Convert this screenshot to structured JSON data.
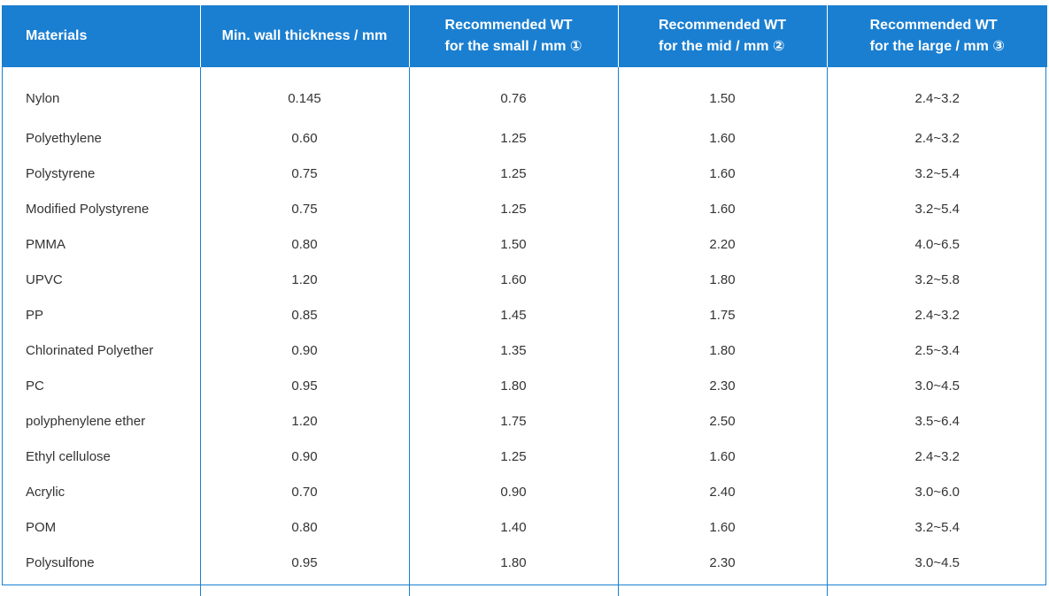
{
  "table": {
    "headers": [
      [
        "Materials"
      ],
      [
        "Min. wall thickness / mm"
      ],
      [
        "Recommended WT",
        "for the small / mm ①"
      ],
      [
        "Recommended WT",
        "for the mid / mm ②"
      ],
      [
        "Recommended WT",
        "for the large / mm ③"
      ]
    ],
    "rows": [
      [
        "Nylon",
        "0.145",
        "0.76",
        "1.50",
        "2.4~3.2"
      ],
      [
        "Polyethylene",
        "0.60",
        "1.25",
        "1.60",
        "2.4~3.2"
      ],
      [
        "Polystyrene",
        "0.75",
        "1.25",
        "1.60",
        "3.2~5.4"
      ],
      [
        "Modified Polystyrene",
        "0.75",
        "1.25",
        "1.60",
        "3.2~5.4"
      ],
      [
        "PMMA",
        "0.80",
        "1.50",
        "2.20",
        "4.0~6.5"
      ],
      [
        "UPVC",
        "1.20",
        "1.60",
        "1.80",
        "3.2~5.8"
      ],
      [
        "PP",
        "0.85",
        "1.45",
        "1.75",
        "2.4~3.2"
      ],
      [
        "Chlorinated Polyether",
        "0.90",
        "1.35",
        "1.80",
        "2.5~3.4"
      ],
      [
        "PC",
        "0.95",
        "1.80",
        "2.30",
        "3.0~4.5"
      ],
      [
        "polyphenylene ether",
        "1.20",
        "1.75",
        "2.50",
        "3.5~6.4"
      ],
      [
        "Ethyl cellulose",
        "0.90",
        "1.25",
        "1.60",
        "2.4~3.2"
      ],
      [
        "Acrylic",
        "0.70",
        "0.90",
        "2.40",
        "3.0~6.0"
      ],
      [
        "POM",
        "0.80",
        "1.40",
        "1.60",
        "3.2~5.4"
      ],
      [
        "Polysulfone",
        "0.95",
        "1.80",
        "2.30",
        "3.0~4.5"
      ]
    ]
  },
  "colors": {
    "header_bg": "#1a7fd1",
    "header_text": "#ffffff",
    "border": "#1a7fd1",
    "cell_text": "#333333"
  }
}
